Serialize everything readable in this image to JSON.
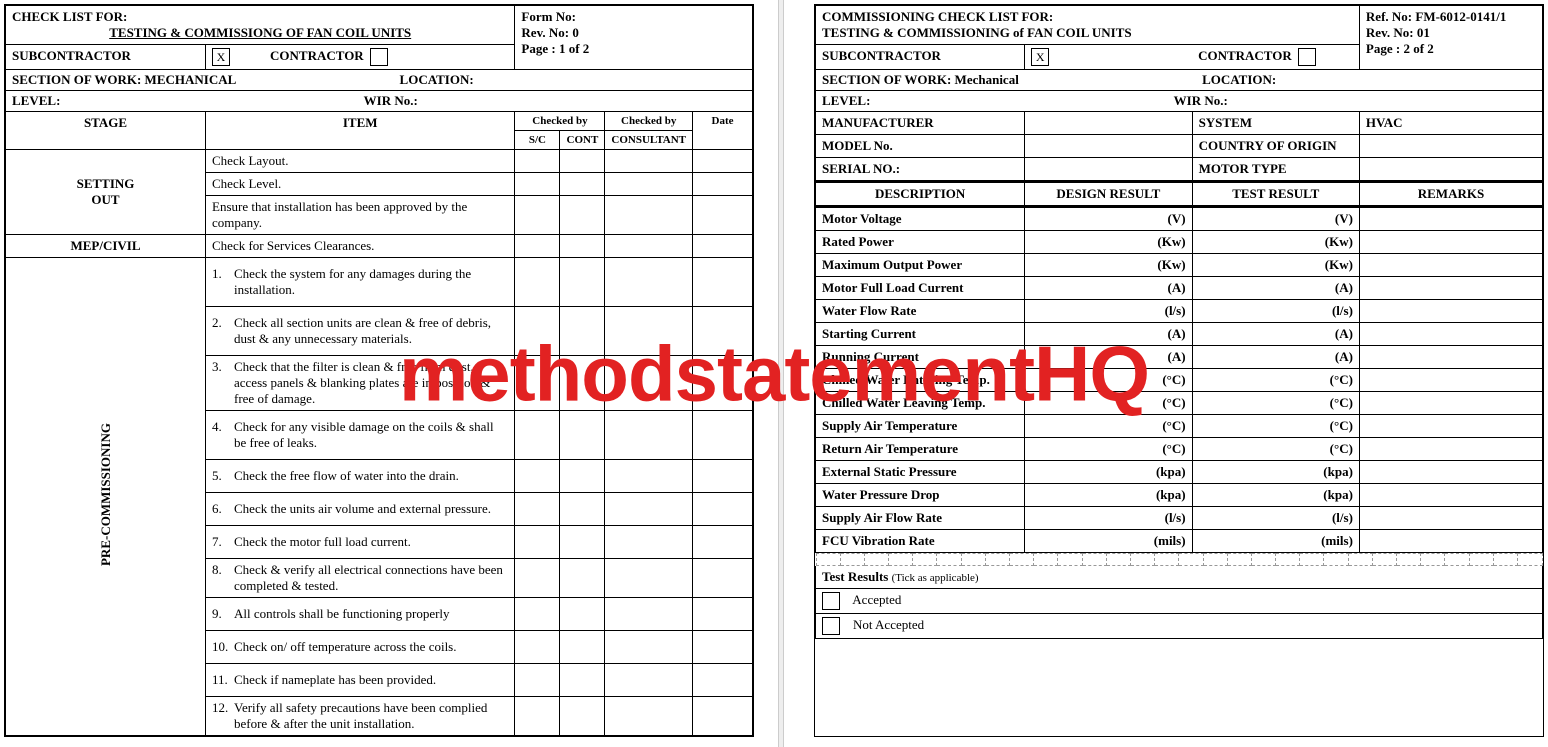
{
  "watermark": "methodstatementHQ",
  "page1": {
    "title_line1": "CHECK LIST FOR:",
    "title_line2": "TESTING & COMMISSIONG OF FAN COIL UNITS",
    "form_no_label": "Form No:",
    "rev_no": "Rev. No: 0",
    "page_info": "Page     : 1  of  2",
    "subcontractor_label": "SUBCONTRACTOR",
    "subcontractor_mark": "X",
    "contractor_label": "CONTRACTOR",
    "section_of_work": "SECTION OF WORK: MECHANICAL",
    "location_label": "LOCATION:",
    "level_label": "LEVEL:",
    "wir_label": "WIR No.:",
    "headers": {
      "stage": "STAGE",
      "item": "ITEM",
      "checked_by": "Checked by",
      "checked_by2": "Checked by",
      "date": "Date",
      "sc": "S/C",
      "cont": "CONT",
      "consultant": "CONSULTANT"
    },
    "stages": {
      "setting_out": "SETTING OUT",
      "mep_civil": "MEP/CIVIL",
      "pre_comm": "PRE-COMMISSIONING"
    },
    "setting_out_items": [
      "Check Layout.",
      "Check Level.",
      "Ensure that installation has been approved by the company."
    ],
    "mep_civil_items": [
      "Check for Services Clearances."
    ],
    "pre_items": [
      "Check the system for any damages during the installation.",
      "Check all section units are clean & free of debris, dust & any unnecessary materials.",
      "Check that the filter is clean & free from dust, access panels & blanking plates are in position & free of damage.",
      "Check for any visible damage on the coils & shall be free of leaks.",
      "Check the free flow of water into the drain.",
      "Check the units air volume and external pressure.",
      "Check the motor full load current.",
      "Check & verify all electrical connections have been completed & tested.",
      "All controls shall be functioning properly",
      "Check on/ off temperature across the coils.",
      "Check if nameplate has been provided.",
      "Verify all safety precautions have been complied before & after the unit installation."
    ]
  },
  "page2": {
    "title_line1": "COMMISSIONING CHECK LIST FOR:",
    "title_line2": "TESTING & COMMISSIONING of FAN COIL UNITS",
    "ref_no": "Ref. No: FM-6012-0141/1",
    "rev_no": "Rev. No: 01",
    "page_info": "Page     : 2  of  2",
    "subcontractor_label": "SUBCONTRACTOR",
    "subcontractor_mark": "X",
    "contractor_label": "CONTRACTOR",
    "section_of_work": "SECTION OF WORK: Mechanical",
    "location_label": "LOCATION:",
    "level_label": "LEVEL:",
    "wir_label": "WIR No.:",
    "info_rows": [
      [
        "MANUFACTURER",
        "",
        "SYSTEM",
        "HVAC"
      ],
      [
        "MODEL No.",
        "",
        "COUNTRY OF ORIGIN",
        ""
      ],
      [
        "SERIAL NO.:",
        "",
        "MOTOR TYPE",
        ""
      ]
    ],
    "columns": [
      "DESCRIPTION",
      "DESIGN RESULT",
      "TEST RESULT",
      "REMARKS"
    ],
    "rows": [
      [
        "Motor Voltage",
        "(V)",
        "(V)",
        ""
      ],
      [
        "Rated Power",
        "(Kw)",
        "(Kw)",
        ""
      ],
      [
        "Maximum Output Power",
        "(Kw)",
        "(Kw)",
        ""
      ],
      [
        "Motor Full Load Current",
        "(A)",
        "(A)",
        ""
      ],
      [
        "Water Flow Rate",
        "(l/s)",
        "(l/s)",
        ""
      ],
      [
        "Starting Current",
        "(A)",
        "(A)",
        ""
      ],
      [
        "Running Current",
        "(A)",
        "(A)",
        ""
      ],
      [
        "Chilled Water Entering Temp.",
        "(°C)",
        "(°C)",
        ""
      ],
      [
        "Chilled Water Leaving Temp.",
        "(°C)",
        "(°C)",
        ""
      ],
      [
        "Supply Air Temperature",
        "(°C)",
        "(°C)",
        ""
      ],
      [
        "Return Air Temperature",
        "(°C)",
        "(°C)",
        ""
      ],
      [
        "External Static Pressure",
        "(kpa)",
        "(kpa)",
        ""
      ],
      [
        "Water Pressure Drop",
        "(kpa)",
        "(kpa)",
        ""
      ],
      [
        "Supply Air Flow Rate",
        "(l/s)",
        "(l/s)",
        ""
      ],
      [
        "FCU Vibration Rate",
        "(mils)",
        "(mils)",
        ""
      ]
    ],
    "test_results_label": "Test Results",
    "tick_note": "(Tick as applicable)",
    "accepted": "Accepted",
    "not_accepted": "Not Accepted"
  }
}
